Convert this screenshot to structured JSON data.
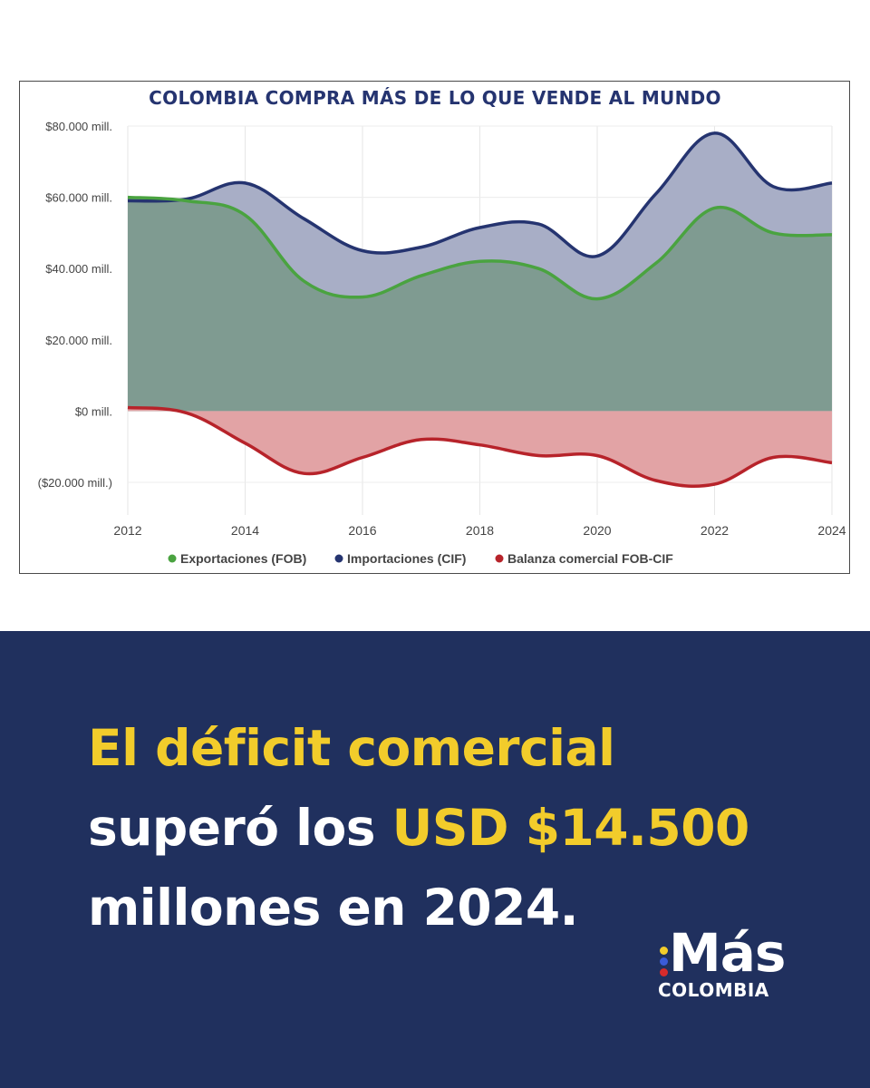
{
  "colors": {
    "exports": "#4aa340",
    "imports": "#253470",
    "balance": "#b7232a",
    "imports_fill": "#a8aec6",
    "exports_fill": "#7f9b91",
    "balance_fill": "#e2a3a5",
    "panel_bg": "#20305e",
    "highlight": "#f2cc2b"
  },
  "chart_data": {
    "type": "area",
    "title": "COLOMBIA COMPRA MÁS DE LO QUE VENDE AL MUNDO",
    "xlabel": "",
    "ylabel": "",
    "x": [
      2012,
      2013,
      2014,
      2015,
      2016,
      2017,
      2018,
      2019,
      2020,
      2021,
      2022,
      2023,
      2024
    ],
    "x_ticks": [
      "2012",
      "2014",
      "2016",
      "2018",
      "2020",
      "2022",
      "2024"
    ],
    "y_ticks": [
      "$80.000 mill.",
      "$60.000 mill.",
      "$40.000 mill.",
      "$20.000 mill.",
      "$0 mill.",
      "($20.000 mill.)"
    ],
    "ylim": [
      -20000,
      80000
    ],
    "grid": true,
    "legend_position": "bottom",
    "series": [
      {
        "name": "Exportaciones (FOB)",
        "values": [
          60000,
          59000,
          55000,
          36500,
          32000,
          38000,
          42000,
          40000,
          31500,
          41500,
          57000,
          50000,
          49500
        ]
      },
      {
        "name": "Importaciones (CIF)",
        "values": [
          59000,
          59500,
          64000,
          54000,
          45000,
          46000,
          51500,
          52500,
          43500,
          61000,
          78000,
          63000,
          64000
        ]
      },
      {
        "name": "Balanza comercial FOB-CIF",
        "values": [
          1000,
          -500,
          -9000,
          -17500,
          -13000,
          -8000,
          -9500,
          -12500,
          -12500,
          -19500,
          -20500,
          -13000,
          -14500
        ]
      }
    ]
  },
  "headline": {
    "line1": "El déficit comercial",
    "line2_prefix": "superó los ",
    "line2_highlight": "USD $14.500",
    "line3": "millones en 2024."
  },
  "logo": {
    "word": "Más",
    "sub": "COLOMBIA"
  }
}
